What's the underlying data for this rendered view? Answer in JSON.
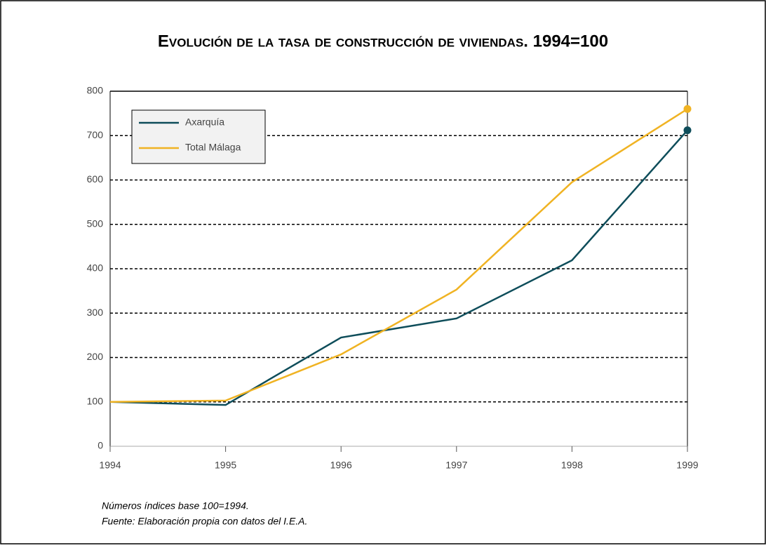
{
  "chart_data": {
    "type": "line",
    "title": "Evolución de la tasa de construcción de viviendas. 1994=100",
    "x": [
      1994,
      1995,
      1996,
      1997,
      1998,
      1999
    ],
    "series": [
      {
        "name": "Axarquía",
        "color": "#0e4d5a",
        "values": [
          100,
          93,
          245,
          288,
          419,
          712
        ]
      },
      {
        "name": "Total Málaga",
        "color": "#f0b323",
        "values": [
          100,
          103,
          207,
          353,
          595,
          760
        ]
      }
    ],
    "xlim": [
      1994,
      1999
    ],
    "xticks": [
      1994,
      1995,
      1996,
      1997,
      1998,
      1999
    ],
    "ylim": [
      0,
      800
    ],
    "yticks": [
      0,
      100,
      200,
      300,
      400,
      500,
      600,
      700,
      800
    ],
    "grid": true,
    "legend": "upper left",
    "notes": [
      "Números índices base 100=1994.",
      "Fuente: Elaboración propia con datos del I.E.A."
    ]
  }
}
